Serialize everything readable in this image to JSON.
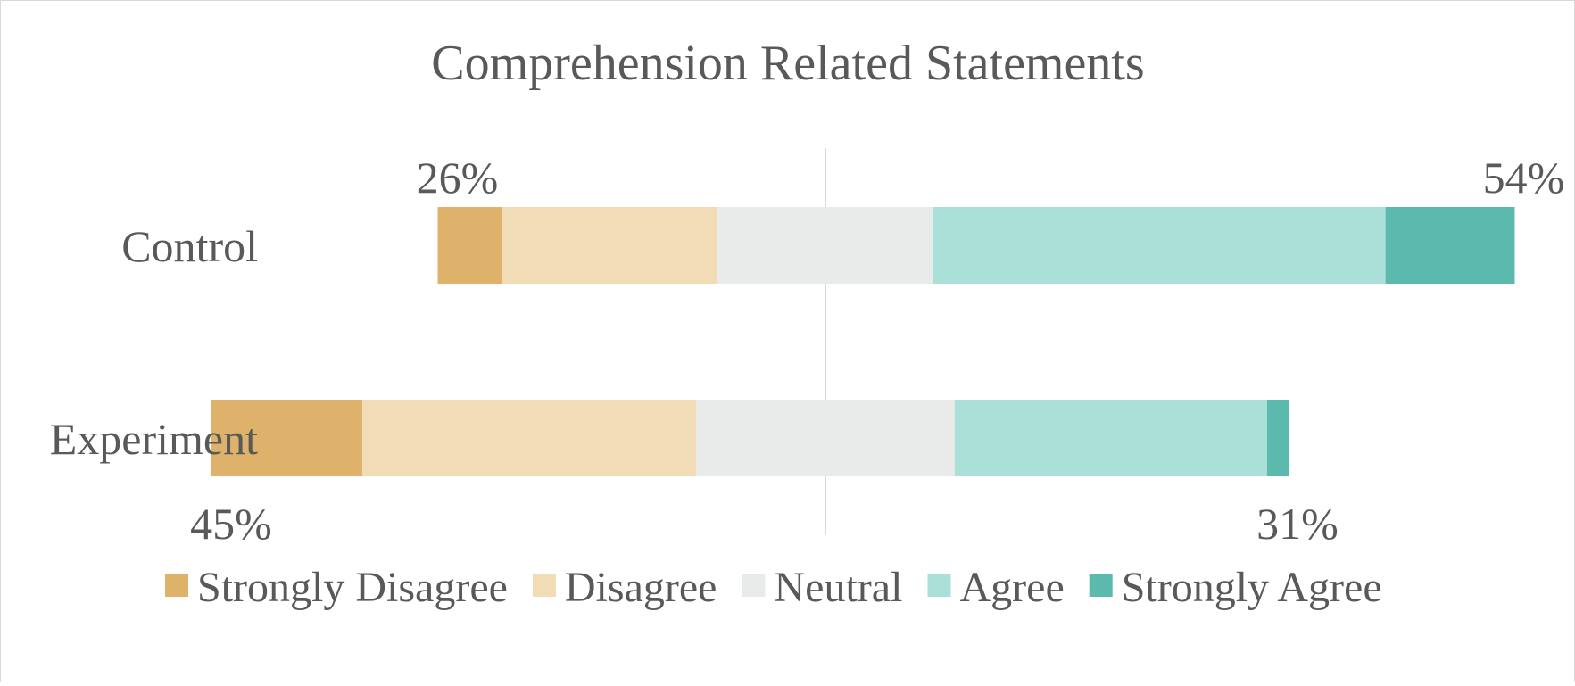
{
  "chart_data": {
    "type": "bar",
    "orientation": "horizontal",
    "stacked": "diverging",
    "title": "Comprehension Related Statements",
    "categories": [
      "Control",
      "Experiment"
    ],
    "series": [
      {
        "name": "Strongly Disagree",
        "color": "#dfb26b",
        "values": [
          6,
          14
        ]
      },
      {
        "name": "Disagree",
        "color": "#f1dcb6",
        "values": [
          20,
          31
        ]
      },
      {
        "name": "Neutral",
        "color": "#e9ebea",
        "values": [
          20,
          24
        ]
      },
      {
        "name": "Agree",
        "color": "#abe0d8",
        "values": [
          42,
          29
        ]
      },
      {
        "name": "Strongly Agree",
        "color": "#5bb9ad",
        "values": [
          12,
          2
        ]
      }
    ],
    "annotations": [
      {
        "category": "Control",
        "side": "negative",
        "text": "26%"
      },
      {
        "category": "Control",
        "side": "positive",
        "text": "54%"
      },
      {
        "category": "Experiment",
        "side": "negative",
        "text": "45%"
      },
      {
        "category": "Experiment",
        "side": "positive",
        "text": "31%"
      }
    ],
    "neutral_centered": true,
    "legend_position": "bottom",
    "grid": false
  }
}
